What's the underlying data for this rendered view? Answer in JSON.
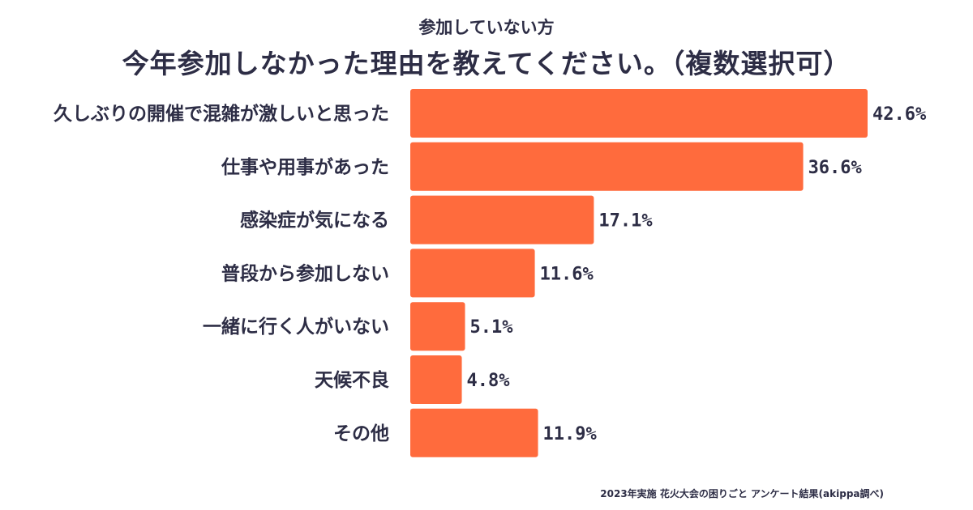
{
  "chart_data": {
    "type": "bar",
    "orientation": "horizontal",
    "subtitle": "参加していない方",
    "title": "今年参加しなかった理由を教えてください。（複数選択可）",
    "categories": [
      "久しぶりの開催で混雑が激しいと思った",
      "仕事や用事があった",
      "感染症が気になる",
      "普段から参加しない",
      "一緒に行く人がいない",
      "天候不良",
      "その他"
    ],
    "values": [
      42.6,
      36.6,
      17.1,
      11.6,
      5.1,
      4.8,
      11.9
    ],
    "value_labels": [
      "42.6%",
      "36.6%",
      "17.1%",
      "11.6%",
      "5.1%",
      "4.8%",
      "11.9%"
    ],
    "bar_color": "#ff6b3d",
    "grid": false,
    "legend": "none"
  },
  "footer": "2023年実施 花火大会の困りごと アンケート結果(akippa調べ)"
}
